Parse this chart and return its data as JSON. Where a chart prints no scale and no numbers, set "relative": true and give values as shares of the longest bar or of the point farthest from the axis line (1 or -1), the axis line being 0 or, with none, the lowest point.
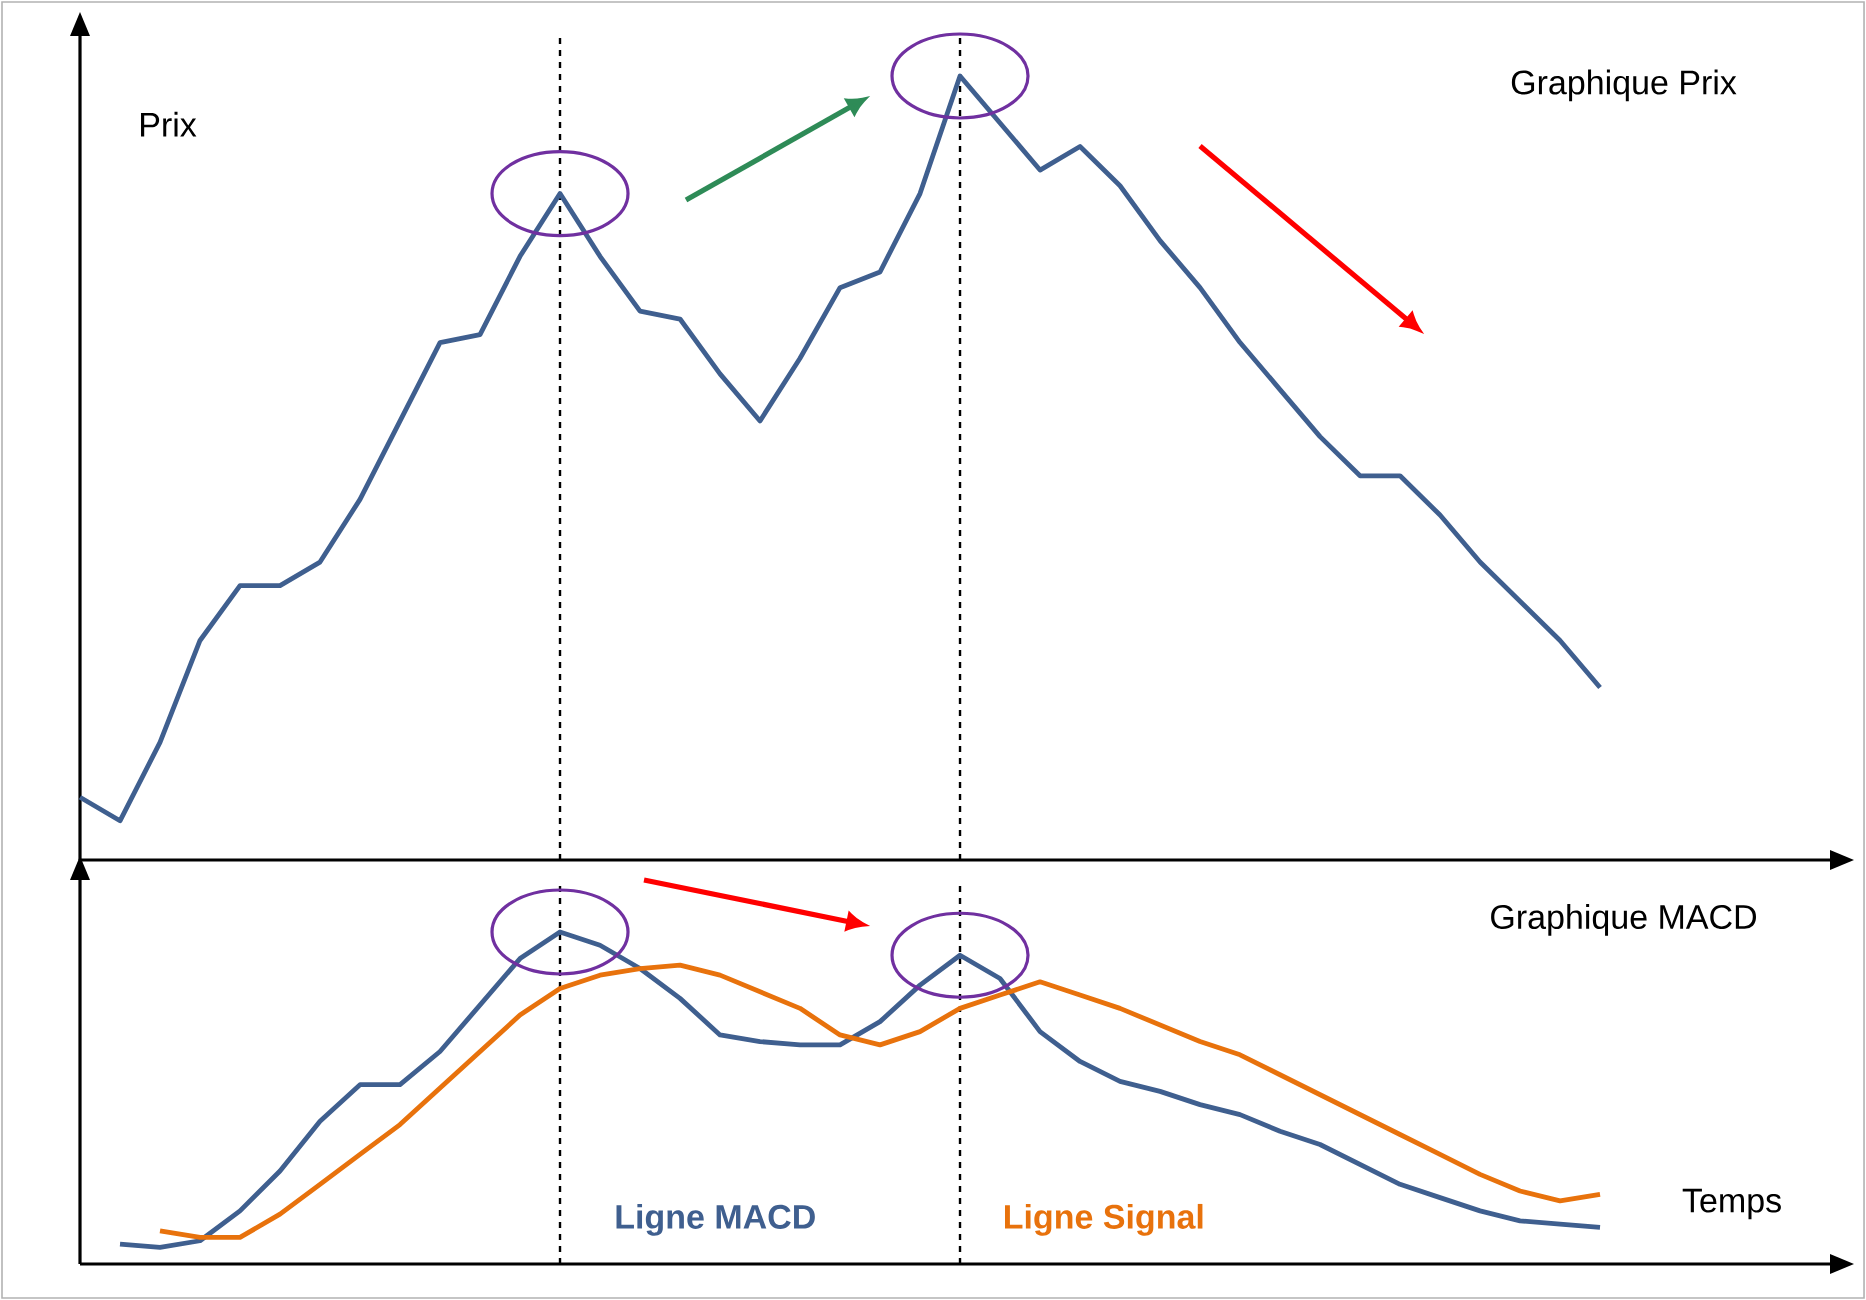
{
  "chart_data": [
    {
      "type": "line",
      "title": "Graphique Prix",
      "ylabel": "Prix",
      "relative": true,
      "tick_labels": false,
      "categories": [
        null,
        null,
        null,
        null,
        null,
        null,
        null,
        null,
        null,
        null,
        null,
        null,
        null,
        null,
        null,
        null,
        null,
        null,
        null,
        null,
        null,
        null,
        null,
        null,
        null,
        null,
        null,
        null,
        null,
        null,
        null,
        null,
        null,
        null,
        null,
        null,
        null,
        null,
        null,
        null
      ],
      "series": [
        {
          "color": "#3f5f8f",
          "values": [
            0.08,
            0.05,
            0.15,
            0.28,
            0.35,
            0.35,
            0.38,
            0.46,
            0.56,
            0.66,
            0.67,
            0.77,
            0.85,
            0.77,
            0.7,
            0.69,
            0.62,
            0.56,
            0.64,
            0.73,
            0.75,
            0.85,
            1.0,
            0.94,
            0.88,
            0.91,
            0.86,
            0.79,
            0.73,
            0.66,
            0.6,
            0.54,
            0.49,
            0.49,
            0.44,
            0.38,
            0.33,
            0.28,
            0.22,
            null
          ]
        }
      ]
    },
    {
      "type": "line",
      "title": "Graphique MACD",
      "xlabel": "Temps",
      "relative": true,
      "tick_labels": false,
      "categories": [
        null,
        null,
        null,
        null,
        null,
        null,
        null,
        null,
        null,
        null,
        null,
        null,
        null,
        null,
        null,
        null,
        null,
        null,
        null,
        null,
        null,
        null,
        null,
        null,
        null,
        null,
        null,
        null,
        null,
        null,
        null,
        null,
        null,
        null,
        null,
        null,
        null,
        null,
        null,
        null
      ],
      "series": [
        {
          "name": "Ligne MACD",
          "color": "#3f5f8f",
          "values": [
            null,
            0.06,
            0.05,
            0.07,
            0.16,
            0.28,
            0.43,
            0.54,
            0.54,
            0.64,
            0.78,
            0.92,
            1.0,
            0.96,
            0.89,
            0.8,
            0.69,
            0.67,
            0.66,
            0.66,
            0.73,
            0.84,
            0.93,
            0.86,
            0.7,
            0.61,
            0.55,
            0.52,
            0.48,
            0.45,
            0.4,
            0.36,
            0.3,
            0.24,
            0.2,
            0.16,
            0.13,
            0.12,
            0.11,
            null
          ]
        },
        {
          "name": "Ligne Signal",
          "color": "#e8720c",
          "values": [
            null,
            null,
            0.1,
            0.08,
            0.08,
            0.15,
            0.24,
            0.33,
            0.42,
            0.53,
            0.64,
            0.75,
            0.83,
            0.87,
            0.89,
            0.9,
            0.87,
            0.82,
            0.77,
            0.69,
            0.66,
            0.7,
            0.77,
            0.81,
            0.85,
            0.81,
            0.77,
            0.72,
            0.67,
            0.63,
            0.57,
            0.51,
            0.45,
            0.39,
            0.33,
            0.27,
            0.22,
            0.19,
            0.21,
            null
          ]
        }
      ]
    }
  ]
}
